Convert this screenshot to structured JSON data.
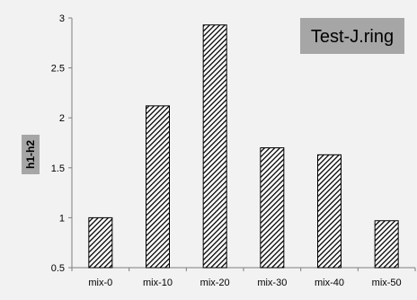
{
  "chart_data": {
    "type": "bar",
    "title": "Test-J.ring",
    "xlabel": "",
    "ylabel": "h1-h2",
    "categories": [
      "mix-0",
      "mix-10",
      "mix-20",
      "mix-30",
      "mix-40",
      "mix-50"
    ],
    "values": [
      1.0,
      2.12,
      2.93,
      1.7,
      1.63,
      0.97
    ],
    "ylim": [
      0.5,
      3
    ],
    "yticks": [
      "0.5",
      "1",
      "1.5",
      "2",
      "2.5",
      "3"
    ],
    "grid": false,
    "legend": "none",
    "bar_fill": "diagonal-hatch",
    "colors": {
      "background": "#f2f2f2",
      "bar_stroke": "#000000",
      "title_box": "#a6a6a6",
      "ylabel_box": "#a6a6a6"
    }
  }
}
